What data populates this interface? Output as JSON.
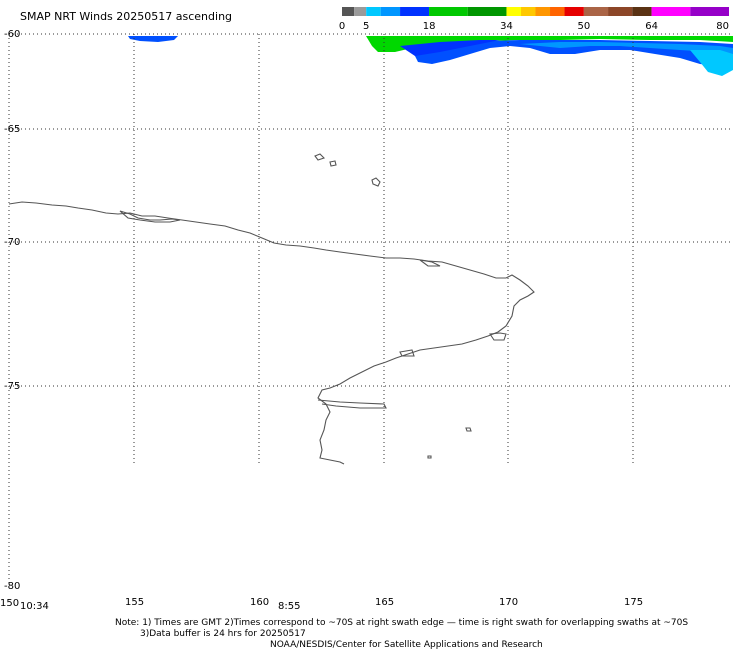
{
  "title": "SMAP NRT Winds 20250517 ascending",
  "colorbar": {
    "tick_labels": [
      "0",
      "5",
      "18",
      "34",
      "50",
      "64",
      "80"
    ],
    "tick_values": [
      0,
      5,
      18,
      34,
      50,
      64,
      80
    ],
    "segments": [
      {
        "from": 0,
        "to": 2.5,
        "color": "#555555"
      },
      {
        "from": 2.5,
        "to": 5,
        "color": "#9a9a9a"
      },
      {
        "from": 5,
        "to": 8,
        "color": "#00c8ff"
      },
      {
        "from": 8,
        "to": 12,
        "color": "#0096ff"
      },
      {
        "from": 12,
        "to": 18,
        "color": "#0032ff"
      },
      {
        "from": 18,
        "to": 26,
        "color": "#00c800"
      },
      {
        "from": 26,
        "to": 34,
        "color": "#009600"
      },
      {
        "from": 34,
        "to": 37,
        "color": "#ffff00"
      },
      {
        "from": 37,
        "to": 40,
        "color": "#ffc800"
      },
      {
        "from": 40,
        "to": 43,
        "color": "#ff9600"
      },
      {
        "from": 43,
        "to": 46,
        "color": "#ff6400"
      },
      {
        "from": 46,
        "to": 50,
        "color": "#e60000"
      },
      {
        "from": 50,
        "to": 55,
        "color": "#aa6446"
      },
      {
        "from": 55,
        "to": 60,
        "color": "#8c4628"
      },
      {
        "from": 60,
        "to": 64,
        "color": "#5a3214"
      },
      {
        "from": 64,
        "to": 72,
        "color": "#ff00ff"
      },
      {
        "from": 72,
        "to": 80,
        "color": "#9600c8"
      }
    ]
  },
  "axes": {
    "lon_ticks": [
      "150",
      "155",
      "160",
      "165",
      "170",
      "175"
    ],
    "lat_ticks": [
      "-60",
      "-65",
      "-70",
      "-75",
      "-80"
    ],
    "grid": true
  },
  "swath_times": [
    "10:34",
    "8:55"
  ],
  "notes": [
    "Note: 1) Times are GMT 2)Times correspond to ~70S at right swath edge — time is right swath for overlapping swaths at ~70S",
    "3)Data buffer is 24 hrs for 20250517",
    "NOAA/NESDIS/Center for Satellite Applications and Research"
  ]
}
